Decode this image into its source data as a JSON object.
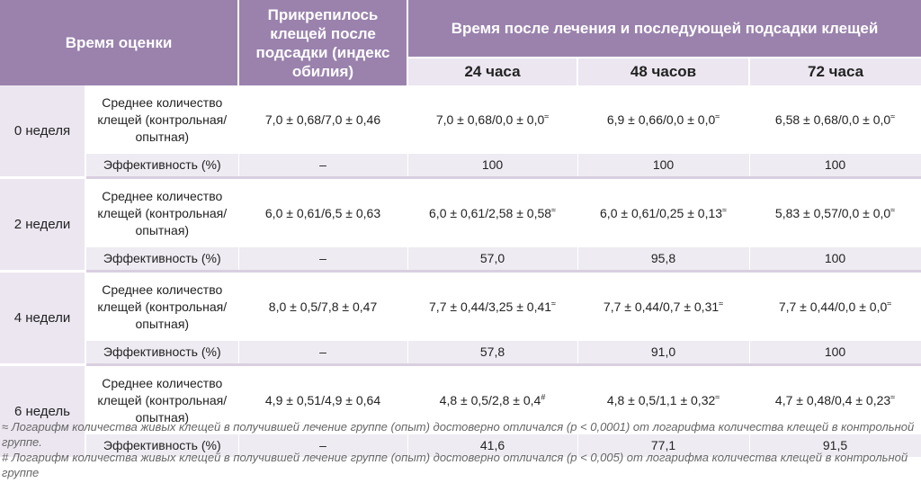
{
  "header": {
    "time_col": "Время оценки",
    "attached_col": "Прикрепилось клещей после подсадки (индекс обилия)",
    "after_col": "Время после лечения и последующей подсадки клещей",
    "sub_cols": [
      "24 часа",
      "48 часов",
      "72 часа"
    ]
  },
  "rows": [
    {
      "week": "0 неделя",
      "mean_label": "Среднее количество клещей (контрольная/опытная)",
      "attached": "7,0 ± 0,68/7,0 ± 0,46",
      "h24": "7,0 ± 0,68/0,0 ± 0,0",
      "h24_mark": "≈",
      "h48": "6,9 ± 0,66/0,0 ± 0,0",
      "h48_mark": "≈",
      "h72": "6,58 ± 0,68/0,0 ± 0,0",
      "h72_mark": "≈",
      "eff_label": "Эффективность (%)",
      "eff_attached": "–",
      "eff24": "100",
      "eff48": "100",
      "eff72": "100"
    },
    {
      "week": "2 недели",
      "mean_label": "Среднее количество клещей (контрольная/опытная)",
      "attached": "6,0 ± 0,61/6,5 ± 0,63",
      "h24": "6,0 ± 0,61/2,58 ± 0,58",
      "h24_mark": "≈",
      "h48": "6,0 ± 0,61/0,25 ± 0,13",
      "h48_mark": "≈",
      "h72": "5,83 ± 0,57/0,0 ± 0,0",
      "h72_mark": "≈",
      "eff_label": "Эффективность (%)",
      "eff_attached": "–",
      "eff24": "57,0",
      "eff48": "95,8",
      "eff72": "100"
    },
    {
      "week": "4 недели",
      "mean_label": "Среднее количество клещей (контрольная/опытная)",
      "attached": "8,0 ± 0,5/7,8 ± 0,47",
      "h24": "7,7 ± 0,44/3,25 ± 0,41",
      "h24_mark": "≈",
      "h48": "7,7 ± 0,44/0,7 ± 0,31",
      "h48_mark": "≈",
      "h72": "7,7 ± 0,44/0,0 ± 0,0",
      "h72_mark": "≈",
      "eff_label": "Эффективность (%)",
      "eff_attached": "–",
      "eff24": "57,8",
      "eff48": "91,0",
      "eff72": "100"
    },
    {
      "week": "6 недель",
      "mean_label": "Среднее количество клещей (контрольная/опытная)",
      "attached": "4,9 ± 0,51/4,9 ± 0,64",
      "h24": "4,8 ± 0,5/2,8 ± 0,4",
      "h24_mark": "#",
      "h48": "4,8 ± 0,5/1,1 ± 0,32",
      "h48_mark": "≈",
      "h72": "4,7 ± 0,48/0,4 ± 0,23",
      "h72_mark": "≈",
      "eff_label": "Эффективность (%)",
      "eff_attached": "–",
      "eff24": "41,6",
      "eff48": "77,1",
      "eff72": "91,5"
    }
  ],
  "notes": [
    "≈ Логарифм количества живых клещей в получившей лечение группе (опыт) достоверно отличался (р < 0,0001) от логарифма количества клещей в контрольной группе.",
    "# Логарифм количества живых клещей в получившей лечение группе (опыт) достоверно отличался (р < 0,005) от логарифма количества клещей в контрольной группе"
  ]
}
